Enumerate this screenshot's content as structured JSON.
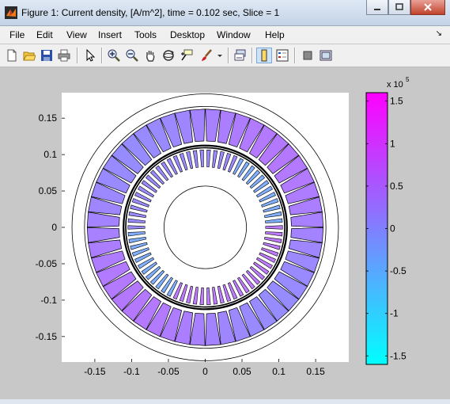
{
  "window": {
    "title": "Figure 1: Current density, [A/m^2], time = 0.102 sec, Slice = 1",
    "controls": [
      "minimize",
      "maximize",
      "close"
    ]
  },
  "menu": {
    "items": [
      "File",
      "Edit",
      "View",
      "Insert",
      "Tools",
      "Desktop",
      "Window",
      "Help"
    ],
    "dock_arrow": "↘"
  },
  "toolbar": {
    "buttons": [
      "new-figure",
      "open-file",
      "save-figure",
      "print-figure",
      "edit-plot",
      "zoom-in",
      "zoom-out",
      "pan",
      "rotate-3d",
      "data-cursor",
      "brush",
      "link-plot",
      "colorbar",
      "legend",
      "hide-plot-tools",
      "show-plot-tools"
    ]
  },
  "axes": {
    "x_ticks": [
      "-0.15",
      "-0.1",
      "-0.05",
      "0",
      "0.05",
      "0.1",
      "0.15"
    ],
    "y_ticks": [
      "0.15",
      "0.1",
      "0.05",
      "0",
      "-0.05",
      "-0.1",
      "-0.15"
    ],
    "xlim": [
      -0.195,
      0.195
    ],
    "ylim": [
      -0.185,
      0.185
    ]
  },
  "colorbar": {
    "ticks": [
      "1.5",
      "1",
      "0.5",
      "0",
      "-0.5",
      "-1",
      "-1.5"
    ],
    "range": [
      -1.6,
      1.6
    ],
    "exponent_label": "x 10",
    "exponent_value": "5",
    "colormap": "cool",
    "top_color": "#ff00ff",
    "bottom_color": "#00ffff"
  },
  "chart_data": {
    "type": "heatmap",
    "title": "",
    "xlabel": "",
    "ylabel": "",
    "x_ticks": [
      -0.15,
      -0.1,
      -0.05,
      0,
      0.05,
      0.1,
      0.15
    ],
    "y_ticks": [
      -0.15,
      -0.1,
      -0.05,
      0,
      0.05,
      0.1,
      0.15
    ],
    "xlim": [
      -0.195,
      0.195
    ],
    "ylim": [
      -0.185,
      0.185
    ],
    "geometry": {
      "outer_boundary_radius": 0.181,
      "stator_outer_radius": 0.164,
      "stator_inner_radius": 0.111,
      "stator_slot_count": 48,
      "rotor_outer_radius": 0.108,
      "rotor_slot_count": 70,
      "shaft_radius": 0.056
    },
    "colorbar": {
      "min": -160000,
      "max": 160000,
      "ticks": [
        -150000,
        -100000,
        -50000,
        0,
        50000,
        100000,
        150000
      ]
    }
  }
}
